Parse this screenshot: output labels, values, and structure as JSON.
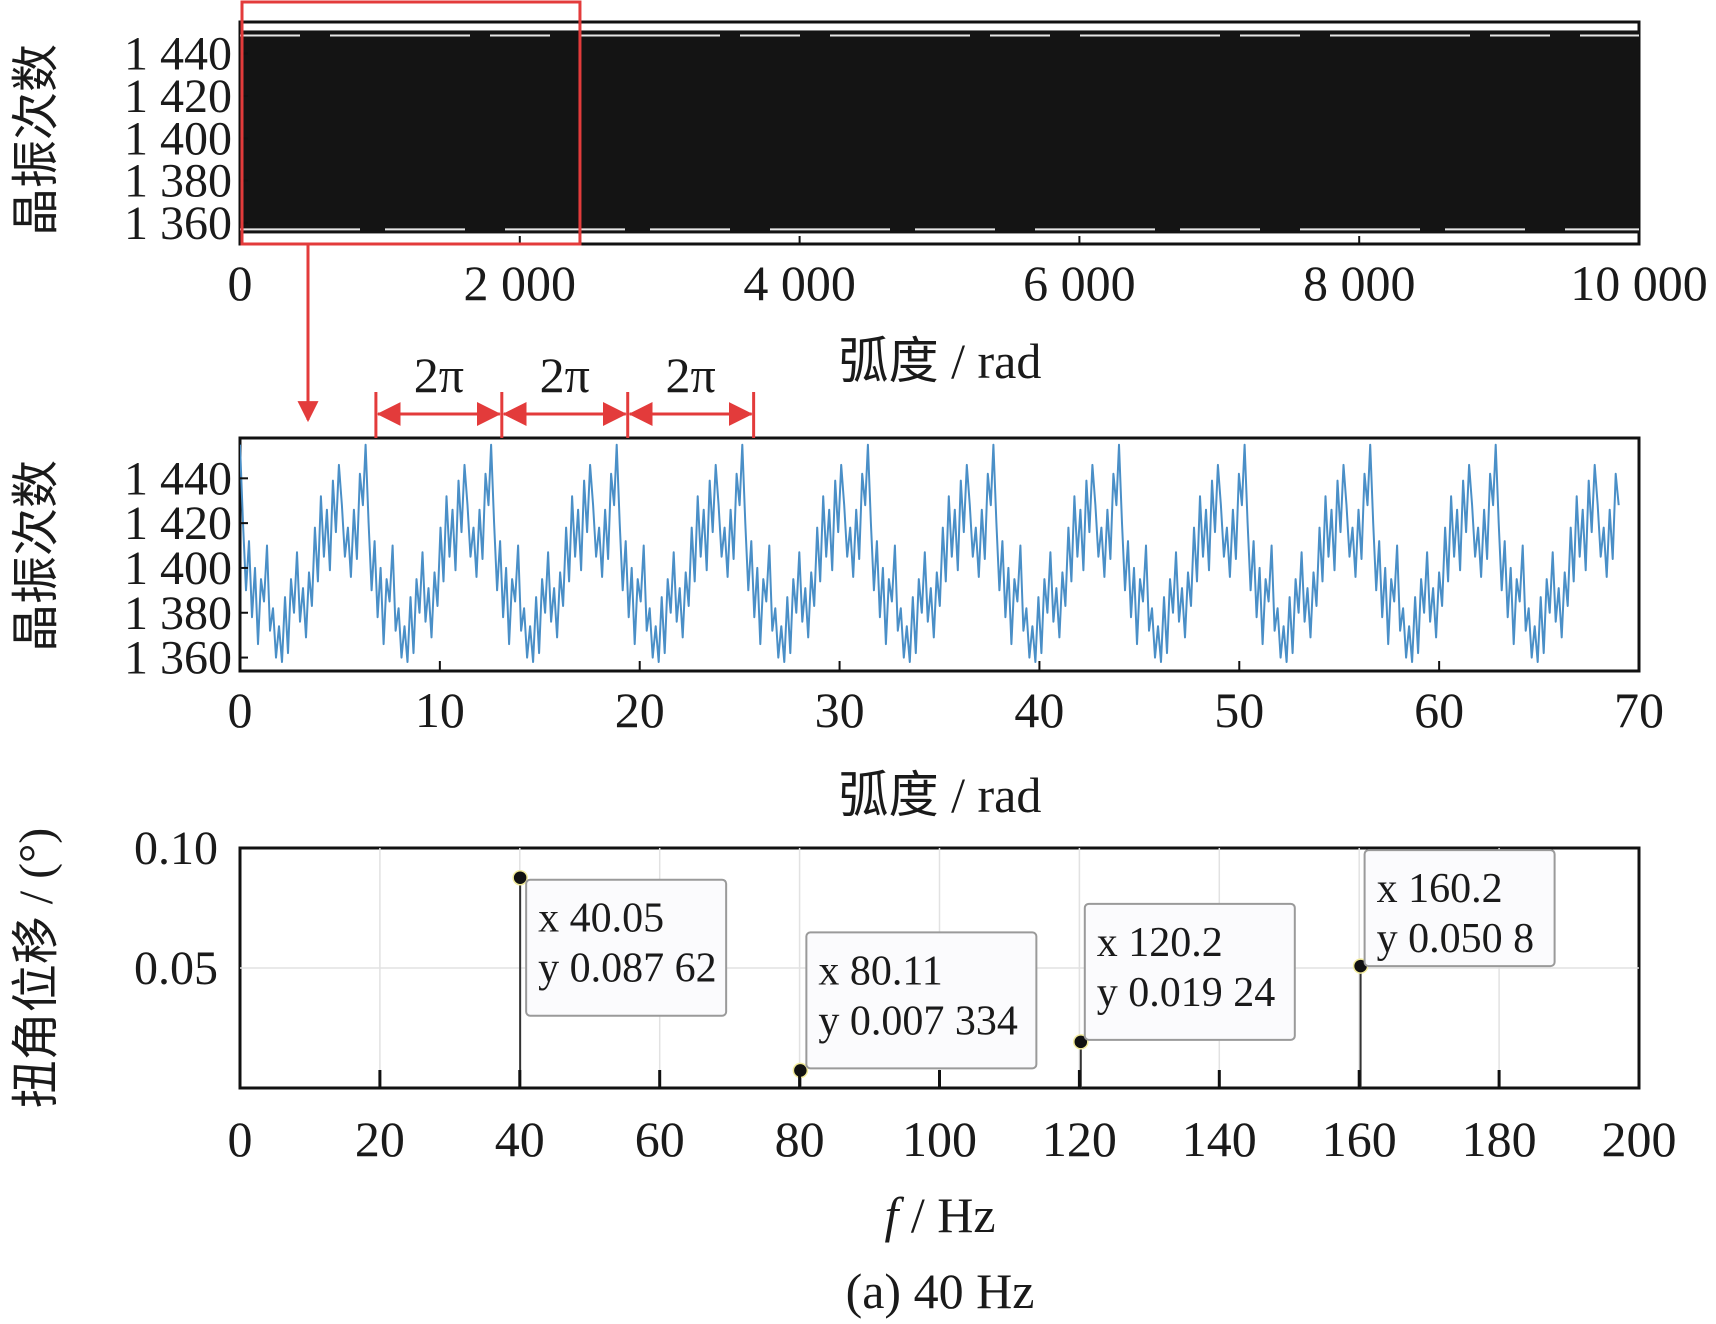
{
  "figure_caption": "(a)  40 Hz",
  "chart_data": [
    {
      "type": "line",
      "name": "full-signal",
      "xlabel": "弧度 / rad",
      "ylabel": "晶振次数",
      "xlim": [
        0,
        10000
      ],
      "ylim": [
        1350,
        1455
      ],
      "xticks": [
        0,
        2000,
        4000,
        6000,
        8000,
        10000
      ],
      "xtick_labels": [
        "0",
        "2 000",
        "4 000",
        "6 000",
        "8 000",
        "10 000"
      ],
      "yticks": [
        1360,
        1380,
        1400,
        1420,
        1440
      ],
      "ytick_labels": [
        "1 360",
        "1 380",
        "1 400",
        "1 420",
        "1 440"
      ],
      "band_range": [
        1355,
        1451
      ],
      "band_color": "#141414",
      "zoom_region": [
        0,
        2430
      ],
      "zoom_color": "#e33b3b"
    },
    {
      "type": "line",
      "name": "zoomed-signal",
      "xlabel": "弧度 / rad",
      "ylabel": "晶振次数",
      "xlim": [
        0,
        70
      ],
      "ylim": [
        1354,
        1458
      ],
      "xticks": [
        0,
        10,
        20,
        30,
        40,
        50,
        60,
        70
      ],
      "xtick_labels": [
        "0",
        "10",
        "20",
        "30",
        "40",
        "50",
        "60",
        "70"
      ],
      "yticks": [
        1360,
        1380,
        1400,
        1420,
        1440
      ],
      "ytick_labels": [
        "1 360",
        "1 380",
        "1 400",
        "1 420",
        "1 440"
      ],
      "line_color": "#4a8fc7",
      "period": 6.2832,
      "x_end": 69.1,
      "period_template": [
        [
          0.0,
          1455
        ],
        [
          0.15,
          1420
        ],
        [
          0.3,
          1390
        ],
        [
          0.45,
          1412
        ],
        [
          0.6,
          1378
        ],
        [
          0.75,
          1400
        ],
        [
          0.9,
          1366
        ],
        [
          1.05,
          1395
        ],
        [
          1.2,
          1385
        ],
        [
          1.35,
          1410
        ],
        [
          1.5,
          1372
        ],
        [
          1.65,
          1382
        ],
        [
          1.8,
          1360
        ],
        [
          1.95,
          1374
        ],
        [
          2.1,
          1358
        ],
        [
          2.25,
          1387
        ],
        [
          2.4,
          1362
        ],
        [
          2.55,
          1395
        ],
        [
          2.7,
          1380
        ],
        [
          2.85,
          1407
        ],
        [
          3.0,
          1376
        ],
        [
          3.15,
          1391
        ],
        [
          3.3,
          1369
        ],
        [
          3.45,
          1398
        ],
        [
          3.6,
          1383
        ],
        [
          3.75,
          1418
        ],
        [
          3.9,
          1394
        ],
        [
          4.05,
          1432
        ],
        [
          4.2,
          1405
        ],
        [
          4.35,
          1426
        ],
        [
          4.5,
          1399
        ],
        [
          4.65,
          1439
        ],
        [
          4.8,
          1416
        ],
        [
          4.95,
          1446
        ],
        [
          5.1,
          1428
        ],
        [
          5.25,
          1405
        ],
        [
          5.4,
          1418
        ],
        [
          5.55,
          1396
        ],
        [
          5.7,
          1426
        ],
        [
          5.85,
          1404
        ],
        [
          6.0,
          1442
        ],
        [
          6.15,
          1428
        ]
      ],
      "period_markers": [
        6.8,
        13.1,
        19.4,
        25.7
      ],
      "period_label": "2π",
      "marker_color": "#e33b3b"
    },
    {
      "type": "line",
      "name": "spectrum",
      "xlabel_italic": "f",
      "xlabel_rest": " / Hz",
      "ylabel": "扭角位移 / (°)",
      "xlim": [
        0,
        200
      ],
      "ylim": [
        0,
        0.1
      ],
      "xticks": [
        0,
        20,
        40,
        60,
        80,
        100,
        120,
        140,
        160,
        180,
        200
      ],
      "xtick_labels": [
        "0",
        "20",
        "40",
        "60",
        "80",
        "100",
        "120",
        "140",
        "160",
        "180",
        "200"
      ],
      "yticks": [
        0.05,
        0.1
      ],
      "ytick_labels": [
        "0.05",
        "0.10"
      ],
      "grid": true,
      "x": [
        40.05,
        80.11,
        120.2,
        160.2
      ],
      "y": [
        0.08762,
        0.007334,
        0.01924,
        0.0508
      ],
      "datatips": [
        {
          "x": "x 40.05",
          "y": "y 0.087 62"
        },
        {
          "x": "x 80.11",
          "y": "y 0.007 334"
        },
        {
          "x": "x 120.2",
          "y": "y 0.019 24"
        },
        {
          "x": "x 160.2",
          "y": "y 0.050 8"
        }
      ]
    }
  ]
}
